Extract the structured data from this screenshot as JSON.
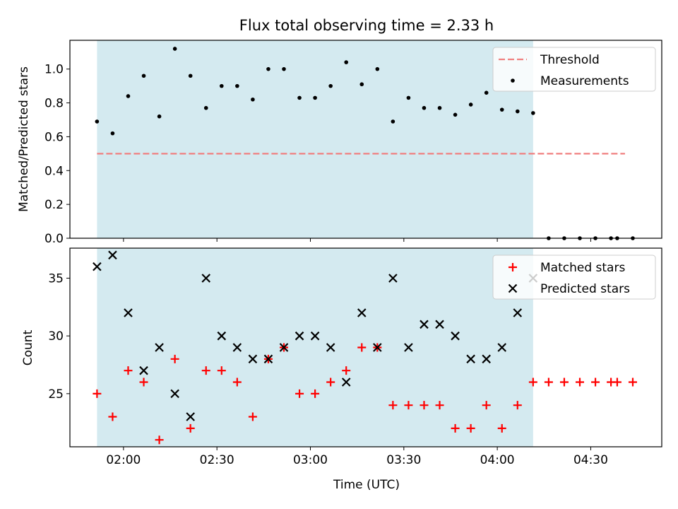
{
  "figure": {
    "title": "Flux total observing time = 2.33 h",
    "xlabel": "Time (UTC)",
    "x_ticks": [
      {
        "value": 120,
        "label": "02:00"
      },
      {
        "value": 150,
        "label": "02:30"
      },
      {
        "value": 180,
        "label": "03:00"
      },
      {
        "value": 210,
        "label": "03:30"
      },
      {
        "value": 240,
        "label": "04:00"
      },
      {
        "value": 270,
        "label": "04:30"
      }
    ],
    "xlim": [
      102.8,
      292.8
    ],
    "shaded_span": [
      111.5,
      251.5
    ],
    "colors": {
      "shade": "#d4eaf0",
      "threshold": "#f08080",
      "measurements": "#000000",
      "matched": "#ff0000",
      "predicted": "#000000"
    }
  },
  "chart_data": [
    {
      "type": "scatter",
      "panel": "top",
      "ylabel": "Matched/Predicted stars",
      "ylim": [
        0,
        1.17
      ],
      "y_ticks": [
        0.0,
        0.2,
        0.4,
        0.6,
        0.8,
        1.0
      ],
      "y_tick_labels": [
        "0.0",
        "0.2",
        "0.4",
        "0.6",
        "0.8",
        "1.0"
      ],
      "threshold": {
        "name": "Threshold",
        "value": 0.5,
        "x_range": [
          111.5,
          281
        ]
      },
      "series": [
        {
          "name": "Measurements",
          "x": [
            111.5,
            116.5,
            121.5,
            126.5,
            131.5,
            136.5,
            141.5,
            146.5,
            151.5,
            156.5,
            161.5,
            166.5,
            171.5,
            176.5,
            181.5,
            186.5,
            191.5,
            196.5,
            201.5,
            206.5,
            211.5,
            216.5,
            221.5,
            226.5,
            231.5,
            236.5,
            241.5,
            246.5,
            251.5,
            256.5,
            261.5,
            266.5,
            271.5,
            276.5,
            278.5,
            283.5
          ],
          "y": [
            0.69,
            0.62,
            0.84,
            0.96,
            0.72,
            1.12,
            0.96,
            0.77,
            0.9,
            0.9,
            0.82,
            1.0,
            1.0,
            0.83,
            0.83,
            0.9,
            1.04,
            0.91,
            1.0,
            0.69,
            0.83,
            0.77,
            0.77,
            0.73,
            0.79,
            0.86,
            0.76,
            0.75,
            0.74,
            0.0,
            0.0,
            0.0,
            0.0,
            0.0,
            0.0,
            0.0
          ]
        }
      ],
      "legend": {
        "position": "top-right",
        "entries": [
          "Threshold",
          "Measurements"
        ]
      }
    },
    {
      "type": "scatter",
      "panel": "bottom",
      "ylabel": "Count",
      "ylim": [
        20.4,
        37.6
      ],
      "y_ticks": [
        25,
        30,
        35
      ],
      "y_tick_labels": [
        "25",
        "30",
        "35"
      ],
      "series": [
        {
          "name": "Matched stars",
          "marker": "+",
          "x": [
            111.5,
            116.5,
            121.5,
            126.5,
            131.5,
            136.5,
            141.5,
            146.5,
            151.5,
            156.5,
            161.5,
            166.5,
            171.5,
            176.5,
            181.5,
            186.5,
            191.5,
            196.5,
            201.5,
            206.5,
            211.5,
            216.5,
            221.5,
            226.5,
            231.5,
            236.5,
            241.5,
            246.5,
            251.5,
            256.5,
            261.5,
            266.5,
            271.5,
            276.5,
            278.5,
            283.5
          ],
          "y": [
            25,
            23,
            27,
            26,
            21,
            28,
            22,
            27,
            27,
            26,
            23,
            28,
            29,
            25,
            25,
            26,
            27,
            29,
            29,
            24,
            24,
            24,
            24,
            22,
            22,
            24,
            22,
            24,
            26,
            26,
            26,
            26,
            26,
            26,
            26,
            26
          ]
        },
        {
          "name": "Predicted stars",
          "marker": "x",
          "x": [
            111.5,
            116.5,
            121.5,
            126.5,
            131.5,
            136.5,
            141.5,
            146.5,
            151.5,
            156.5,
            161.5,
            166.5,
            171.5,
            176.5,
            181.5,
            186.5,
            191.5,
            196.5,
            201.5,
            206.5,
            211.5,
            216.5,
            221.5,
            226.5,
            231.5,
            236.5,
            241.5,
            246.5,
            251.5
          ],
          "y": [
            36,
            37,
            32,
            27,
            29,
            25,
            23,
            35,
            30,
            29,
            28,
            28,
            29,
            30,
            30,
            29,
            26,
            32,
            29,
            35,
            29,
            31,
            31,
            30,
            28,
            28,
            29,
            32,
            35
          ]
        }
      ],
      "legend": {
        "position": "top-right",
        "entries": [
          "Matched stars",
          "Predicted stars"
        ]
      }
    }
  ]
}
